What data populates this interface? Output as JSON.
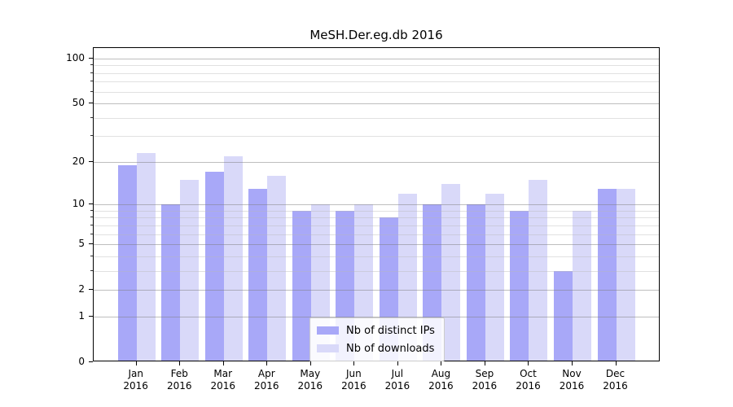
{
  "title": "MeSH.Der.eg.db 2016",
  "colors": {
    "distinct_ips_bar": "#a8a8f8",
    "downloads_bar": "#d9d9f9",
    "axis": "#000000",
    "grid_major": "#7d7d7d",
    "grid_minor": "#b8b8b8",
    "legend_border": "#cccccc"
  },
  "legend": {
    "items": [
      {
        "label": "Nb of distinct IPs",
        "color": "#a8a8f8"
      },
      {
        "label": "Nb of downloads",
        "color": "#d9d9f9"
      }
    ]
  },
  "chart_data": {
    "type": "bar",
    "title": "MeSH.Der.eg.db 2016",
    "categories": [
      "Jan",
      "Feb",
      "Mar",
      "Apr",
      "May",
      "Jun",
      "Jul",
      "Aug",
      "Sep",
      "Oct",
      "Nov",
      "Dec"
    ],
    "year_label": "2016",
    "series": [
      {
        "name": "Nb of distinct IPs",
        "color": "#a8a8f8",
        "values": [
          19,
          10,
          17,
          13,
          9,
          9,
          8,
          10,
          10,
          9,
          3,
          13
        ]
      },
      {
        "name": "Nb of downloads",
        "color": "#d9d9f9",
        "values": [
          23,
          15,
          22,
          16,
          10,
          10,
          12,
          14,
          12,
          15,
          9,
          13
        ]
      }
    ],
    "xlabel": "",
    "ylabel": "",
    "y_scale": "log1p",
    "ylim": [
      0,
      119
    ],
    "yticks_major": [
      0,
      1,
      2,
      5,
      10,
      20,
      50,
      100
    ],
    "yticks_minor": [
      3,
      4,
      6,
      7,
      8,
      9,
      30,
      40,
      60,
      70,
      80,
      90
    ],
    "grid": true,
    "legend_position": "bottom-center"
  }
}
